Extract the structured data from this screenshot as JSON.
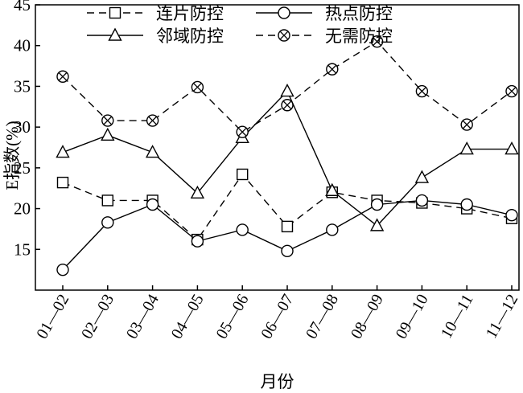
{
  "chart_data": {
    "type": "line",
    "xlabel": "月份",
    "ylabel": "E指数(%)",
    "ylim": [
      10,
      45
    ],
    "yticks": [
      15,
      20,
      25,
      30,
      35,
      40,
      45
    ],
    "categories": [
      "01—02",
      "02—03",
      "03—04",
      "04—05",
      "05—06",
      "06—07",
      "07—08",
      "08—09",
      "09—10",
      "10—11",
      "11—12"
    ],
    "legend_position": "top",
    "grid": false,
    "series": [
      {
        "name": "连片防控",
        "marker": "square",
        "dash": "dashed",
        "values": [
          23.2,
          21.0,
          21.0,
          16.2,
          24.2,
          17.8,
          22.0,
          21.0,
          20.7,
          20.0,
          18.8
        ]
      },
      {
        "name": "热点防控",
        "marker": "circle",
        "dash": "solid",
        "values": [
          12.5,
          18.3,
          20.5,
          16.0,
          17.4,
          14.8,
          17.4,
          20.5,
          21.0,
          20.5,
          19.2
        ]
      },
      {
        "name": "邻域防控",
        "marker": "triangle",
        "dash": "solid",
        "values": [
          26.9,
          29.0,
          26.9,
          21.9,
          28.7,
          34.4,
          22.2,
          17.9,
          23.8,
          27.3,
          27.3
        ]
      },
      {
        "name": "无需防控",
        "marker": "circle-x",
        "dash": "dashed",
        "values": [
          36.2,
          30.8,
          30.8,
          34.9,
          29.4,
          32.7,
          37.1,
          40.5,
          34.4,
          30.3,
          34.4
        ]
      }
    ]
  }
}
